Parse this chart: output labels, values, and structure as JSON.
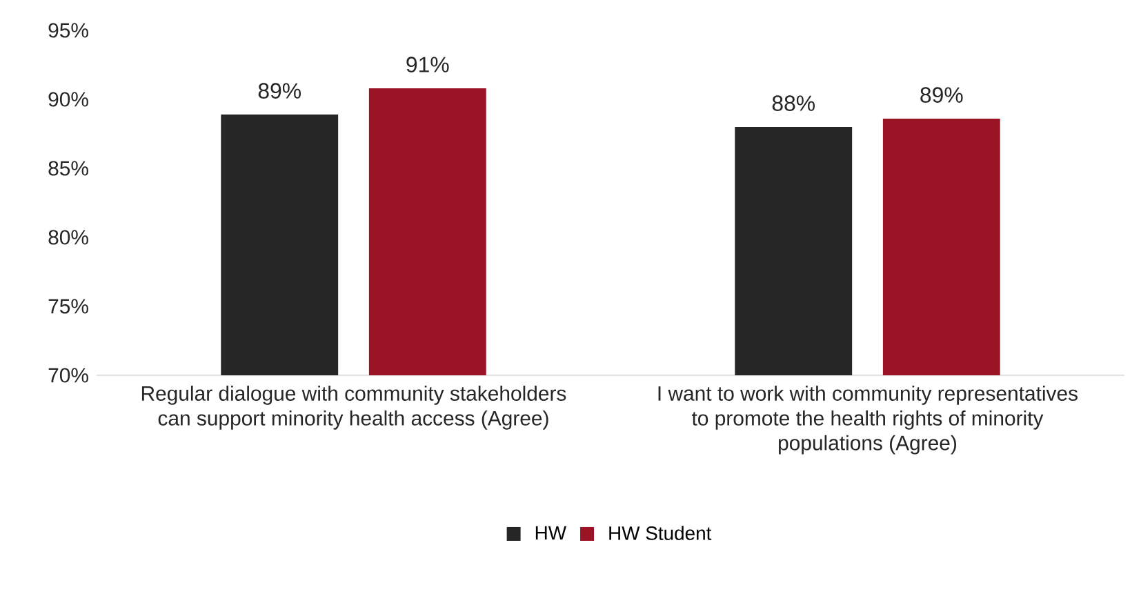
{
  "chart_data": {
    "type": "bar",
    "categories": [
      "Regular dialogue with community stakeholders can support minority health access (Agree)",
      "I want to work with community representatives to promote the health rights of minority populations (Agree)"
    ],
    "series": [
      {
        "name": "HW",
        "color": "#262626",
        "values": [
          88.9,
          88.0
        ],
        "value_labels": [
          "89%",
          "88%"
        ]
      },
      {
        "name": "HW Student",
        "color": "#9b1426",
        "values": [
          90.8,
          88.6
        ],
        "value_labels": [
          "91%",
          "89%"
        ]
      }
    ],
    "ylim": [
      70,
      95
    ],
    "yticks": [
      {
        "value": 70,
        "label": "70%"
      },
      {
        "value": 75,
        "label": "75%"
      },
      {
        "value": 80,
        "label": "80%"
      },
      {
        "value": 85,
        "label": "85%"
      },
      {
        "value": 90,
        "label": "90%"
      },
      {
        "value": 95,
        "label": "95%"
      }
    ],
    "grid": false,
    "legend": "bottom"
  }
}
